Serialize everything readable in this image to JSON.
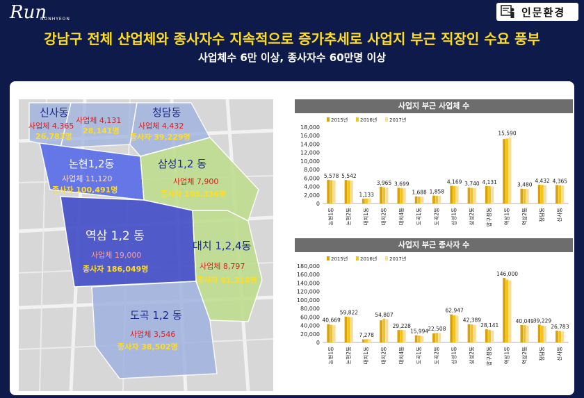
{
  "header": {
    "logo_text": "Run",
    "logo_sub": "NONHYEON",
    "badge_label": "인문환경",
    "title": "강남구 전체 산업체와 종사자수 지속적으로 증가추세로 사업지 부근 직장인 수요 풍부",
    "subtitle": "사업체수 6만 이상, 종사자수 60만명 이상"
  },
  "colors": {
    "background": "#0e1a4a",
    "title": "#ffde21",
    "series_2015": "#d8a20c",
    "series_2016": "#f2c21d",
    "series_2017": "#f9dd97",
    "blue_zone": "#5c6ee8",
    "green_zone": "#bfdd8f"
  },
  "map": {
    "regions": [
      {
        "name": "신사동",
        "biz": "사업체 4,365",
        "emp": "26,783명"
      },
      {
        "name": "",
        "biz": "사업체 4,131",
        "emp": "28,141명"
      },
      {
        "name": "청담동",
        "biz": "사업체 4,432",
        "emp": "종사자 39,229명"
      },
      {
        "name": "논현1,2동",
        "biz": "사업체 11,120",
        "emp": "종사자 100,491명"
      },
      {
        "name": "삼성1,2 동",
        "biz": "사업체 7,900",
        "emp": "종사자 105,336명"
      },
      {
        "name": "역삼 1,2 동",
        "biz": "사업체 19,000",
        "emp": "종사자 186,049명"
      },
      {
        "name": "대치 1,2,4동",
        "biz": "사업체 8,797",
        "emp": "종사자 91,318명"
      },
      {
        "name": "도곡 1,2 동",
        "biz": "사업체 3,546",
        "emp": "종사자 38,502명"
      }
    ]
  },
  "chart_data": [
    {
      "type": "bar",
      "title": "사업지 부근 사업체 수",
      "categories": [
        "논현1동",
        "논현2동",
        "대치1동",
        "대치2동",
        "대치4동",
        "도곡1동",
        "도곡2동",
        "삼성1동",
        "삼성2동",
        "압구정동",
        "역삼1동",
        "역삼2동",
        "청담동",
        "신사동"
      ],
      "series": [
        {
          "name": "2015년",
          "values": [
            5578,
            5542,
            1133,
            3965,
            3699,
            1688,
            1858,
            4169,
            3740,
            4131,
            15200,
            3480,
            4432,
            4365
          ]
        },
        {
          "name": "2016년",
          "values": [
            5500,
            5450,
            1150,
            3800,
            3650,
            1640,
            1830,
            4120,
            3680,
            4080,
            15300,
            3430,
            4380,
            4290
          ]
        },
        {
          "name": "2017년",
          "values": [
            5450,
            5400,
            1180,
            3720,
            3620,
            1610,
            1800,
            4080,
            3650,
            4020,
            15590,
            3400,
            4340,
            4260
          ]
        }
      ],
      "data_labels": [
        "5,578",
        "5,542",
        "1,133",
        "3,965",
        "3,699",
        "1,688",
        "1,858",
        "4,169",
        "3,740",
        "4,131",
        "15,590",
        "3,480",
        "4,432",
        "4,365"
      ],
      "ylim": [
        0,
        18000
      ],
      "yticks": [
        "0",
        "2,000",
        "4,000",
        "6,000",
        "8,000",
        "10,000",
        "12,000",
        "14,000",
        "16,000",
        "18,000"
      ],
      "legend": "top-left"
    },
    {
      "type": "bar",
      "title": "사업지 부근 종사자 수",
      "categories": [
        "논현1동",
        "논현2동",
        "대치1동",
        "대치2동",
        "대치4동",
        "도곡1동",
        "도곡2동",
        "삼성1동",
        "삼성2동",
        "압구정동",
        "역삼1동",
        "역삼2동",
        "청담동",
        "신사동"
      ],
      "series": [
        {
          "name": "2015년",
          "values": [
            43000,
            61000,
            7278,
            52000,
            29228,
            17000,
            21500,
            66000,
            43000,
            31000,
            152000,
            41000,
            42000,
            27500
          ]
        },
        {
          "name": "2016년",
          "values": [
            41500,
            60000,
            7600,
            56000,
            29500,
            15994,
            22508,
            64000,
            42389,
            29500,
            148000,
            40500,
            39800,
            26783
          ]
        },
        {
          "name": "2017년",
          "values": [
            40669,
            59822,
            7900,
            54807,
            28900,
            15500,
            22000,
            62947,
            41500,
            28141,
            146000,
            40049,
            39229,
            26500
          ]
        }
      ],
      "data_labels": [
        "40,669",
        "59,822",
        "7,278",
        "54,807",
        "29,228",
        "15,994",
        "22,508",
        "62,947",
        "42,389",
        "28,141",
        "146,000",
        "40,049",
        "39,229",
        "26,783"
      ],
      "ylim": [
        0,
        180000
      ],
      "yticks": [
        "0",
        "20,000",
        "40,000",
        "60,000",
        "80,000",
        "100,000",
        "120,000",
        "140,000",
        "160,000",
        "180,000"
      ],
      "legend": "top-left"
    }
  ]
}
